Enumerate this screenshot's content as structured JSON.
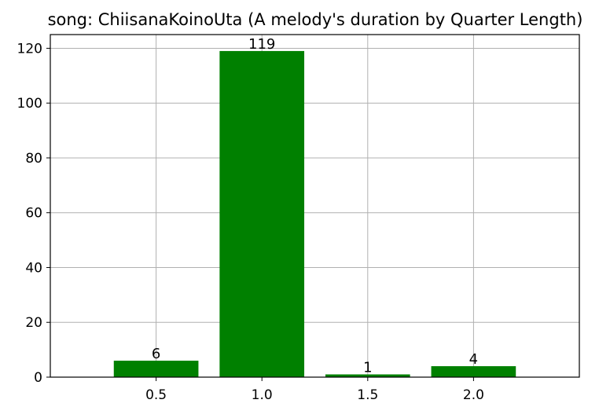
{
  "chart_data": {
    "type": "bar",
    "title": "song: ChiisanaKoinoUta (A melody's duration by Quarter Length)",
    "xlabel": "",
    "ylabel": "",
    "categories": [
      "0.5",
      "1.0",
      "1.5",
      "2.0"
    ],
    "values": [
      6,
      119,
      1,
      4
    ],
    "data_labels": [
      "6",
      "119",
      "1",
      "4"
    ],
    "yticks": [
      0,
      20,
      40,
      60,
      80,
      100,
      120
    ],
    "ytick_labels": [
      "0",
      "20",
      "40",
      "60",
      "80",
      "100",
      "120"
    ],
    "ylim": [
      0,
      125
    ],
    "grid": true,
    "bar_color": "#008000",
    "grid_color": "#b0b0b0"
  }
}
